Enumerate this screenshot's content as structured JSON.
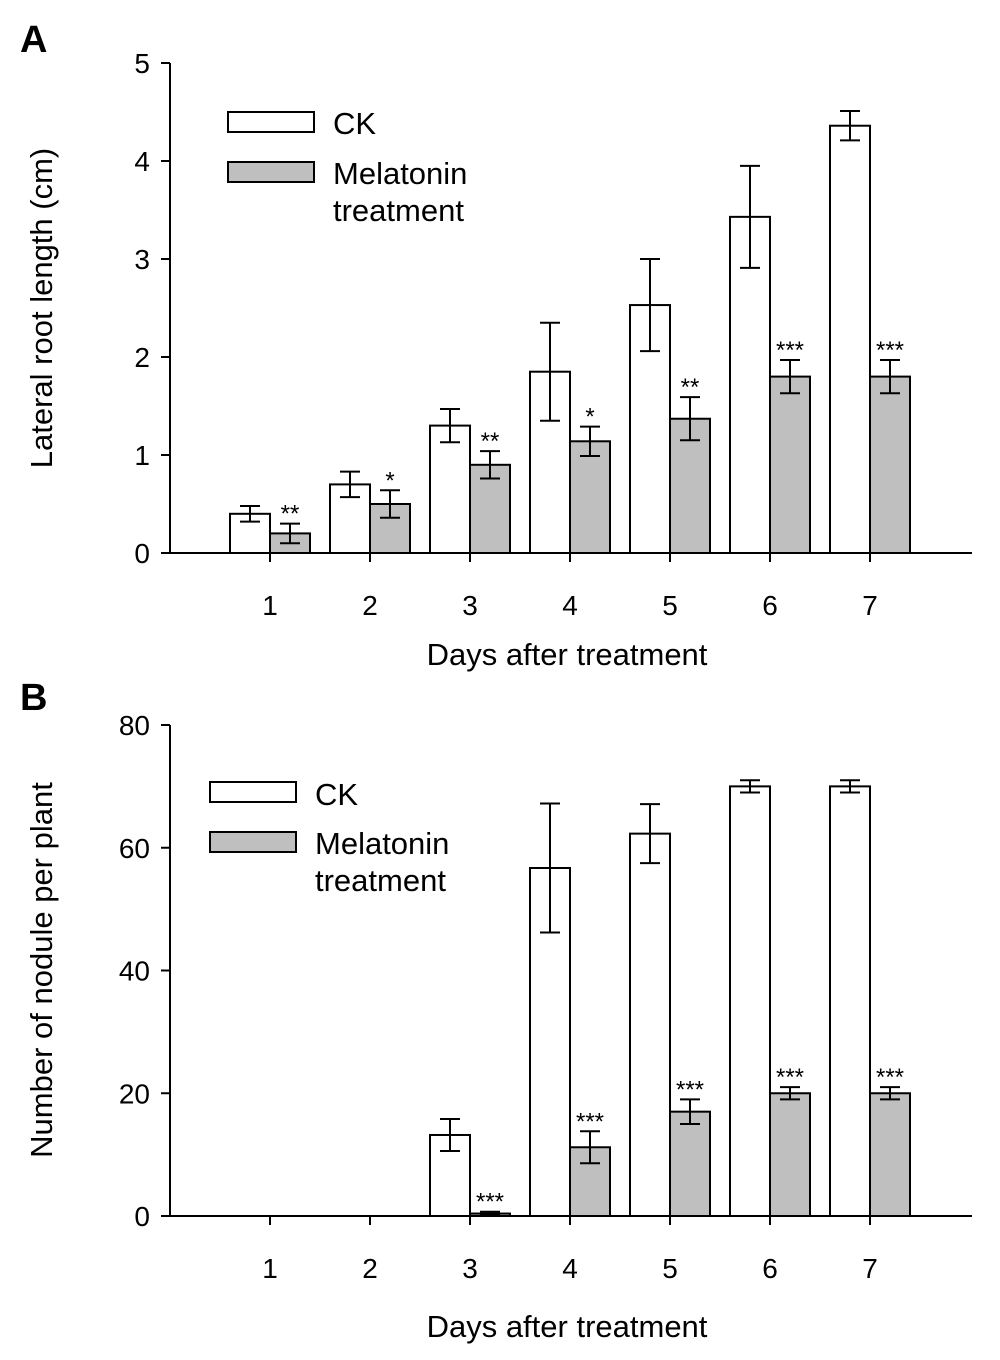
{
  "chart_data": [
    {
      "type": "bar",
      "panel_label": "A",
      "categories": [
        "1",
        "2",
        "3",
        "4",
        "5",
        "6",
        "7"
      ],
      "xlabel": "Days after treatment",
      "ylabel": "Lateral root length (cm)",
      "ylim": [
        0,
        5
      ],
      "yticks": [
        "0",
        "1",
        "2",
        "3",
        "4",
        "5"
      ],
      "legend_position": "top-left",
      "grid": false,
      "series": [
        {
          "name": "CK",
          "color": "#ffffff",
          "values": [
            0.4,
            0.7,
            1.3,
            1.85,
            2.53,
            3.43,
            4.36
          ],
          "errors": [
            0.08,
            0.13,
            0.17,
            0.5,
            0.47,
            0.52,
            0.15
          ]
        },
        {
          "name": "Melatonin treatment",
          "color": "#bfbfbf",
          "values": [
            0.2,
            0.5,
            0.9,
            1.14,
            1.37,
            1.8,
            1.8
          ],
          "errors": [
            0.1,
            0.14,
            0.14,
            0.15,
            0.22,
            0.17,
            0.17
          ]
        }
      ],
      "annotations": [
        "**",
        "*",
        "**",
        "*",
        "**",
        "***",
        "***"
      ]
    },
    {
      "type": "bar",
      "panel_label": "B",
      "categories": [
        "1",
        "2",
        "3",
        "4",
        "5",
        "6",
        "7"
      ],
      "xlabel": "Days after treatment",
      "ylabel": "Number of nodule per plant",
      "ylim": [
        0,
        80
      ],
      "yticks": [
        "0",
        "20",
        "40",
        "60",
        "80"
      ],
      "legend_position": "top-left",
      "grid": false,
      "series": [
        {
          "name": "CK",
          "color": "#ffffff",
          "values": [
            0,
            0,
            13.2,
            56.7,
            62.3,
            70,
            70
          ],
          "errors": [
            0,
            0,
            2.6,
            10.5,
            4.8,
            1,
            1
          ]
        },
        {
          "name": "Melatonin treatment",
          "color": "#bfbfbf",
          "values": [
            0,
            0,
            0.4,
            11.2,
            17,
            20,
            20
          ],
          "errors": [
            0,
            0,
            0.3,
            2.6,
            2,
            1,
            1
          ]
        }
      ],
      "annotations": [
        "",
        "",
        "***",
        "***",
        "***",
        "***",
        "***"
      ]
    }
  ]
}
